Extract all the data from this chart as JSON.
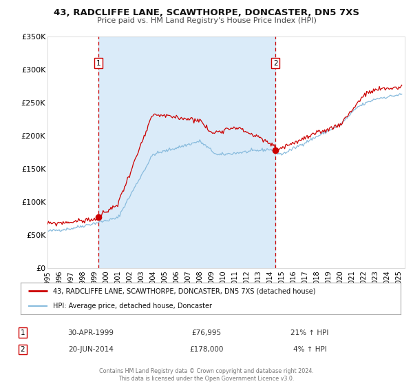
{
  "title": "43, RADCLIFFE LANE, SCAWTHORPE, DONCASTER, DN5 7XS",
  "subtitle": "Price paid vs. HM Land Registry's House Price Index (HPI)",
  "plot_bg_color": "#ffffff",
  "span_color": "#ddeeff",
  "legend_line1": "43, RADCLIFFE LANE, SCAWTHORPE, DONCASTER, DN5 7XS (detached house)",
  "legend_line2": "HPI: Average price, detached house, Doncaster",
  "sale1_date": "30-APR-1999",
  "sale1_price": "£76,995",
  "sale1_hpi": "21% ↑ HPI",
  "sale1_year": 1999.33,
  "sale1_value": 76995,
  "sale2_date": "20-JUN-2014",
  "sale2_price": "£178,000",
  "sale2_hpi": "4% ↑ HPI",
  "sale2_year": 2014.47,
  "sale2_value": 178000,
  "footer1": "Contains HM Land Registry data © Crown copyright and database right 2024.",
  "footer2": "This data is licensed under the Open Government Licence v3.0.",
  "ylim": [
    0,
    350000
  ],
  "yticks": [
    0,
    50000,
    100000,
    150000,
    200000,
    250000,
    300000,
    350000
  ],
  "ytick_labels": [
    "£0",
    "£50K",
    "£100K",
    "£150K",
    "£200K",
    "£250K",
    "£300K",
    "£350K"
  ],
  "xlim_start": 1995.0,
  "xlim_end": 2025.5,
  "red_line_color": "#cc0000",
  "blue_line_color": "#88bbdd",
  "marker_color": "#cc0000",
  "vline_color": "#cc0000"
}
